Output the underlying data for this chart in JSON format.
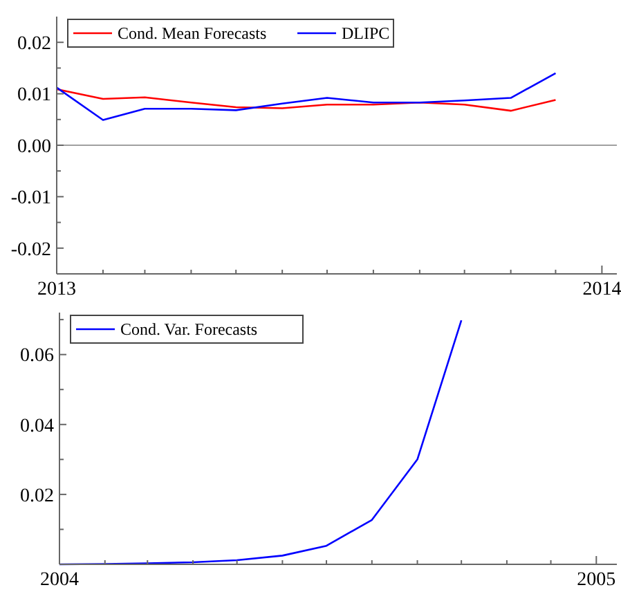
{
  "chart_data": [
    {
      "type": "line",
      "x": [
        "2013-01",
        "2013-02",
        "2013-03",
        "2013-04",
        "2013-05",
        "2013-06",
        "2013-07",
        "2013-08",
        "2013-09",
        "2013-10",
        "2013-11",
        "2013-12"
      ],
      "series": [
        {
          "name": "Cond. Mean Forecasts",
          "color": "#ff0000",
          "values": [
            0.0109,
            0.009,
            0.0093,
            0.0083,
            0.0074,
            0.0072,
            0.0079,
            0.0079,
            0.0083,
            0.0079,
            0.0067,
            0.0088
          ]
        },
        {
          "name": "DLIPC",
          "color": "#0000ff",
          "values": [
            0.0112,
            0.0049,
            0.0071,
            0.0071,
            0.0068,
            0.0081,
            0.0092,
            0.0083,
            0.0083,
            0.0087,
            0.0092,
            0.014
          ]
        }
      ],
      "xlim": [
        "2013-01-01",
        "2014-01-11"
      ],
      "xticks": [
        {
          "value": "2013-01",
          "label": "2013"
        },
        {
          "value": "2013-02",
          "label": null
        },
        {
          "value": "2013-03",
          "label": null
        },
        {
          "value": "2013-04",
          "label": null
        },
        {
          "value": "2013-05",
          "label": null
        },
        {
          "value": "2013-06",
          "label": null
        },
        {
          "value": "2013-07",
          "label": null
        },
        {
          "value": "2013-08",
          "label": null
        },
        {
          "value": "2013-09",
          "label": null
        },
        {
          "value": "2013-10",
          "label": null
        },
        {
          "value": "2013-11",
          "label": null
        },
        {
          "value": "2013-12",
          "label": null
        },
        {
          "value": "2014-01",
          "label": "2014"
        }
      ],
      "ylim": [
        -0.025,
        0.025
      ],
      "yticks": [
        {
          "value": -0.02,
          "label": "-0.02"
        },
        {
          "value": -0.015,
          "label": null
        },
        {
          "value": -0.01,
          "label": "-0.01"
        },
        {
          "value": -0.005,
          "label": null
        },
        {
          "value": 0,
          "label": "0.00"
        },
        {
          "value": 0.005,
          "label": null
        },
        {
          "value": 0.01,
          "label": "0.01"
        },
        {
          "value": 0.015,
          "label": null
        },
        {
          "value": 0.02,
          "label": "0.02"
        }
      ],
      "ref_lines": [
        {
          "axis": "y",
          "value": 0,
          "color": "#a0a0a0"
        }
      ],
      "legend": "top left",
      "grid": false,
      "marker": "none",
      "line_style": "solid"
    },
    {
      "type": "line",
      "x": [
        "2004-01",
        "2004-02",
        "2004-03",
        "2004-04",
        "2004-05",
        "2004-06",
        "2004-07",
        "2004-08",
        "2004-09",
        "2004-10"
      ],
      "series": [
        {
          "name": "Cond. Var. Forecasts",
          "color": "#0000ff",
          "values": [
            0.0,
            0.0001,
            0.0003,
            0.0006,
            0.0012,
            0.0025,
            0.0053,
            0.0127,
            0.03,
            0.0698
          ]
        }
      ],
      "xlim": [
        "2004-01-01",
        "2005-01-15"
      ],
      "xticks": [
        {
          "value": "2004-01",
          "label": "2004"
        },
        {
          "value": "2004-02",
          "label": null
        },
        {
          "value": "2004-03",
          "label": null
        },
        {
          "value": "2004-04",
          "label": null
        },
        {
          "value": "2004-05",
          "label": null
        },
        {
          "value": "2004-06",
          "label": null
        },
        {
          "value": "2004-07",
          "label": null
        },
        {
          "value": "2004-08",
          "label": null
        },
        {
          "value": "2004-09",
          "label": null
        },
        {
          "value": "2004-10",
          "label": null
        },
        {
          "value": "2004-11",
          "label": null
        },
        {
          "value": "2004-12",
          "label": null
        },
        {
          "value": "2005-01",
          "label": "2005"
        }
      ],
      "ylim": [
        0,
        0.072
      ],
      "yticks": [
        {
          "value": 0.01,
          "label": null
        },
        {
          "value": 0.02,
          "label": "0.02"
        },
        {
          "value": 0.03,
          "label": null
        },
        {
          "value": 0.04,
          "label": "0.04"
        },
        {
          "value": 0.05,
          "label": null
        },
        {
          "value": 0.06,
          "label": "0.06"
        },
        {
          "value": 0.07,
          "label": null
        }
      ],
      "legend": "top left",
      "grid": false,
      "marker": "none",
      "line_style": "solid"
    }
  ]
}
